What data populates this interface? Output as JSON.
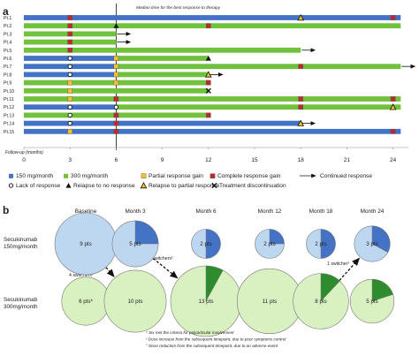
{
  "panel_a": {
    "tag": "a",
    "median_label": "Median time for the best response to therapy",
    "axis_title": "Follow-up (months)",
    "legend": [
      {
        "key": "dose150",
        "label": "150 mg/month"
      },
      {
        "key": "dose300",
        "label": "300 mg/month"
      },
      {
        "key": "partial_gain",
        "label": "Partial response gain"
      },
      {
        "key": "complete_gain",
        "label": "Complete response gain"
      },
      {
        "key": "continued",
        "label": "Continued response"
      },
      {
        "key": "lack",
        "label": "Lack of response"
      },
      {
        "key": "relapse_no",
        "label": "Relapse to no response"
      },
      {
        "key": "relapse_partial",
        "label": "Relapse to partial response"
      },
      {
        "key": "discontinuation",
        "label": "Treatment discontinuation"
      }
    ]
  },
  "panel_b": {
    "tag": "b",
    "columns": [
      "Baseline",
      "Month 3",
      "Month 6",
      "Month 12",
      "Month 18",
      "Month 24"
    ],
    "rows": [
      {
        "line1": "Secukinumab",
        "line2": "150mg/month"
      },
      {
        "line1": "Secukinumab",
        "line2": "300mg/month"
      }
    ],
    "arrow_labels": [
      "4 switchers°",
      "3 switchers¹",
      "1 switcher¹"
    ],
    "footnotes": [
      "* Six met the criteria for polyarticular involvement",
      "¹ Dose increase from the subsequent timepoint, due to poor symptoms control",
      "° Dose reduction from the subsequent timepoint, due to an adverse event"
    ]
  },
  "colors": {
    "dose150": "#4472c4",
    "dose300": "#70c23c",
    "partial": "#f2c12e",
    "complete": "#c0282e",
    "bubble150": "#bdd7f1",
    "bubble300": "#d9f0c0",
    "wedge150": "#4472c4",
    "wedge300": "#2e8b2e"
  },
  "chart_data": [
    {
      "type": "timeline",
      "xlabel": "Follow-up (months)",
      "xlim": [
        0,
        25
      ],
      "ticks": [
        0,
        3,
        6,
        9,
        12,
        15,
        18,
        21,
        24
      ],
      "median_month": 6,
      "patients": [
        {
          "label": "Pt.1",
          "segments": [
            {
              "dose": 150,
              "start": 0,
              "end": 24.5
            }
          ],
          "events": [
            {
              "type": "complete",
              "m": 3
            },
            {
              "type": "relapse_partial",
              "m": 18
            },
            {
              "type": "complete",
              "m": 24
            }
          ]
        },
        {
          "label": "Pt.2",
          "segments": [
            {
              "dose": 300,
              "start": 0,
              "end": 24.5
            }
          ],
          "events": [
            {
              "type": "complete",
              "m": 3
            },
            {
              "type": "relapse_no",
              "m": 6
            },
            {
              "type": "complete",
              "m": 12
            }
          ]
        },
        {
          "label": "Pt.3",
          "segments": [
            {
              "dose": 300,
              "start": 0,
              "end": 6
            }
          ],
          "events": [
            {
              "type": "complete",
              "m": 3
            },
            {
              "type": "continued",
              "m": 6
            }
          ]
        },
        {
          "label": "Pt.4",
          "segments": [
            {
              "dose": 300,
              "start": 0,
              "end": 6
            }
          ],
          "events": [
            {
              "type": "complete",
              "m": 3
            },
            {
              "type": "continued",
              "m": 6
            }
          ]
        },
        {
          "label": "Pt.5",
          "segments": [
            {
              "dose": 300,
              "start": 0,
              "end": 18
            }
          ],
          "events": [
            {
              "type": "complete",
              "m": 3
            },
            {
              "type": "continued",
              "m": 18
            }
          ]
        },
        {
          "label": "Pt.6",
          "segments": [
            {
              "dose": 150,
              "start": 0,
              "end": 6
            },
            {
              "dose": 300,
              "start": 6,
              "end": 12
            }
          ],
          "events": [
            {
              "type": "lack",
              "m": 3
            },
            {
              "type": "partial",
              "m": 6
            },
            {
              "type": "relapse_no",
              "m": 12
            }
          ]
        },
        {
          "label": "Pt.7",
          "segments": [
            {
              "dose": 150,
              "start": 0,
              "end": 6
            },
            {
              "dose": 300,
              "start": 6,
              "end": 24.5
            }
          ],
          "events": [
            {
              "type": "lack",
              "m": 3
            },
            {
              "type": "partial",
              "m": 6
            },
            {
              "type": "complete",
              "m": 18
            },
            {
              "type": "continued",
              "m": 24.5
            }
          ]
        },
        {
          "label": "Pt.8",
          "segments": [
            {
              "dose": 150,
              "start": 0,
              "end": 6
            },
            {
              "dose": 300,
              "start": 6,
              "end": 12
            }
          ],
          "events": [
            {
              "type": "lack",
              "m": 3
            },
            {
              "type": "partial",
              "m": 6
            },
            {
              "type": "relapse_partial",
              "m": 12
            },
            {
              "type": "continued",
              "m": 12
            }
          ]
        },
        {
          "label": "Pt.9",
          "segments": [
            {
              "dose": 300,
              "start": 0,
              "end": 12
            }
          ],
          "events": [
            {
              "type": "partial",
              "m": 3
            },
            {
              "type": "partial",
              "m": 6
            },
            {
              "type": "complete",
              "m": 12
            }
          ]
        },
        {
          "label": "Pt.10",
          "segments": [
            {
              "dose": 300,
              "start": 0,
              "end": 12
            }
          ],
          "events": [
            {
              "type": "partial",
              "m": 3
            },
            {
              "type": "discontinuation",
              "m": 12
            }
          ]
        },
        {
          "label": "Pt.11",
          "segments": [
            {
              "dose": 300,
              "start": 0,
              "end": 24.5
            }
          ],
          "events": [
            {
              "type": "partial",
              "m": 3
            },
            {
              "type": "complete",
              "m": 6
            },
            {
              "type": "complete",
              "m": 18
            },
            {
              "type": "complete",
              "m": 24
            }
          ]
        },
        {
          "label": "Pt.12",
          "segments": [
            {
              "dose": 150,
              "start": 0,
              "end": 6
            },
            {
              "dose": 300,
              "start": 6,
              "end": 24.5
            }
          ],
          "events": [
            {
              "type": "lack",
              "m": 3
            },
            {
              "type": "lack",
              "m": 6
            },
            {
              "type": "complete",
              "m": 18
            },
            {
              "type": "relapse_partial",
              "m": 24
            }
          ]
        },
        {
          "label": "Pt.13",
          "segments": [
            {
              "dose": 300,
              "start": 0,
              "end": 12
            }
          ],
          "events": [
            {
              "type": "lack",
              "m": 3
            },
            {
              "type": "complete",
              "m": 6
            },
            {
              "type": "complete",
              "m": 12
            }
          ]
        },
        {
          "label": "Pt.14",
          "segments": [
            {
              "dose": 150,
              "start": 0,
              "end": 18
            }
          ],
          "events": [
            {
              "type": "lack",
              "m": 3
            },
            {
              "type": "complete",
              "m": 6
            },
            {
              "type": "relapse_partial",
              "m": 18
            },
            {
              "type": "continued",
              "m": 18
            }
          ]
        },
        {
          "label": "Pt.15",
          "segments": [
            {
              "dose": 150,
              "start": 0,
              "end": 24.5
            }
          ],
          "events": [
            {
              "type": "partial",
              "m": 3
            },
            {
              "type": "complete",
              "m": 6
            },
            {
              "type": "complete",
              "m": 24
            }
          ]
        }
      ]
    },
    {
      "type": "bubble",
      "columns": [
        "Baseline",
        "Month 3",
        "Month 6",
        "Month 12",
        "Month 18",
        "Month 24"
      ],
      "series": [
        {
          "name": "Secukinumab 150mg/month",
          "values": [
            9,
            5,
            2,
            2,
            2,
            3
          ],
          "labels": [
            "9 pts",
            "5 pts",
            "2 pts",
            "2 pts",
            "2 pts",
            "3 pts"
          ],
          "highlighted_fraction": [
            0,
            0.25,
            0.5,
            0.25,
            0.5,
            0.33
          ]
        },
        {
          "name": "Secukinumab 300mg/month",
          "values": [
            6,
            10,
            13,
            11,
            8,
            5
          ],
          "labels": [
            "6 pts*",
            "10 pts",
            "13 pts",
            "11 pts",
            "8 pts",
            "5 pts"
          ],
          "highlighted_fraction": [
            0,
            0,
            0.08,
            0,
            0.12,
            0.2
          ]
        }
      ],
      "switches": [
        {
          "label": "4 switchers°",
          "from": "Baseline 150",
          "to": "Month 3 300"
        },
        {
          "label": "3 switchers¹",
          "from": "Month 3 150",
          "to": "Month 6 300"
        },
        {
          "label": "1 switcher¹",
          "from": "Month 18 300",
          "to": "Month 24 150"
        }
      ]
    }
  ]
}
